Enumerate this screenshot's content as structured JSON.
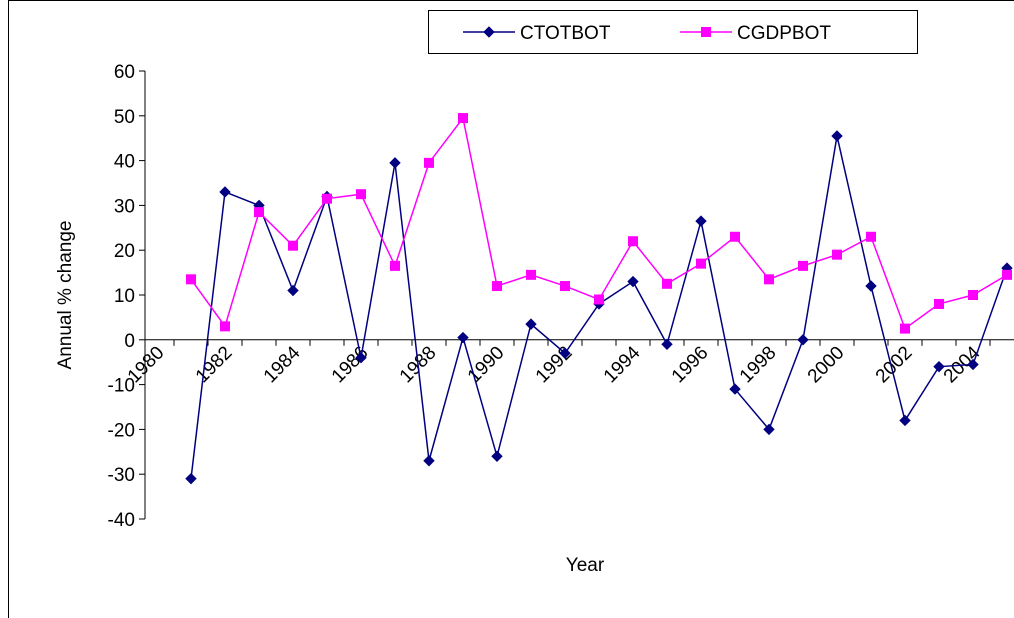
{
  "chart_data": {
    "type": "line",
    "x_label": "Year",
    "y_label": "Annual % change",
    "categories": [
      "1980",
      null,
      "1982",
      null,
      "1984",
      null,
      "1986",
      null,
      "1988",
      null,
      "1990",
      null,
      "1992",
      null,
      "1994",
      null,
      "1996",
      null,
      "1998",
      null,
      "2000",
      null,
      "2002",
      null,
      "2004",
      null
    ],
    "series": [
      {
        "name": "CTOTBOT",
        "color": "#000080",
        "marker": "diamond",
        "values": [
          null,
          -31,
          33,
          30,
          11,
          32,
          -4,
          39.5,
          -27,
          0.5,
          -26,
          3.5,
          -3,
          8,
          13,
          -1,
          26.5,
          -11,
          -20,
          0,
          45.5,
          12,
          -18,
          -6,
          -5.5,
          16
        ]
      },
      {
        "name": "CGDPBOT",
        "color": "#ff00ff",
        "marker": "square",
        "values": [
          null,
          13.5,
          3,
          28.5,
          21,
          31.5,
          32.5,
          16.5,
          39.5,
          49.5,
          12,
          14.5,
          12,
          9,
          22,
          12.5,
          17,
          23,
          13.5,
          16.5,
          19,
          23,
          2.5,
          8,
          10,
          14.5
        ]
      }
    ],
    "ylim": [
      -40,
      60
    ],
    "yticks": [
      -40,
      -30,
      -20,
      -10,
      0,
      10,
      20,
      30,
      40,
      50,
      60
    ],
    "grid": false,
    "legend": "top"
  }
}
